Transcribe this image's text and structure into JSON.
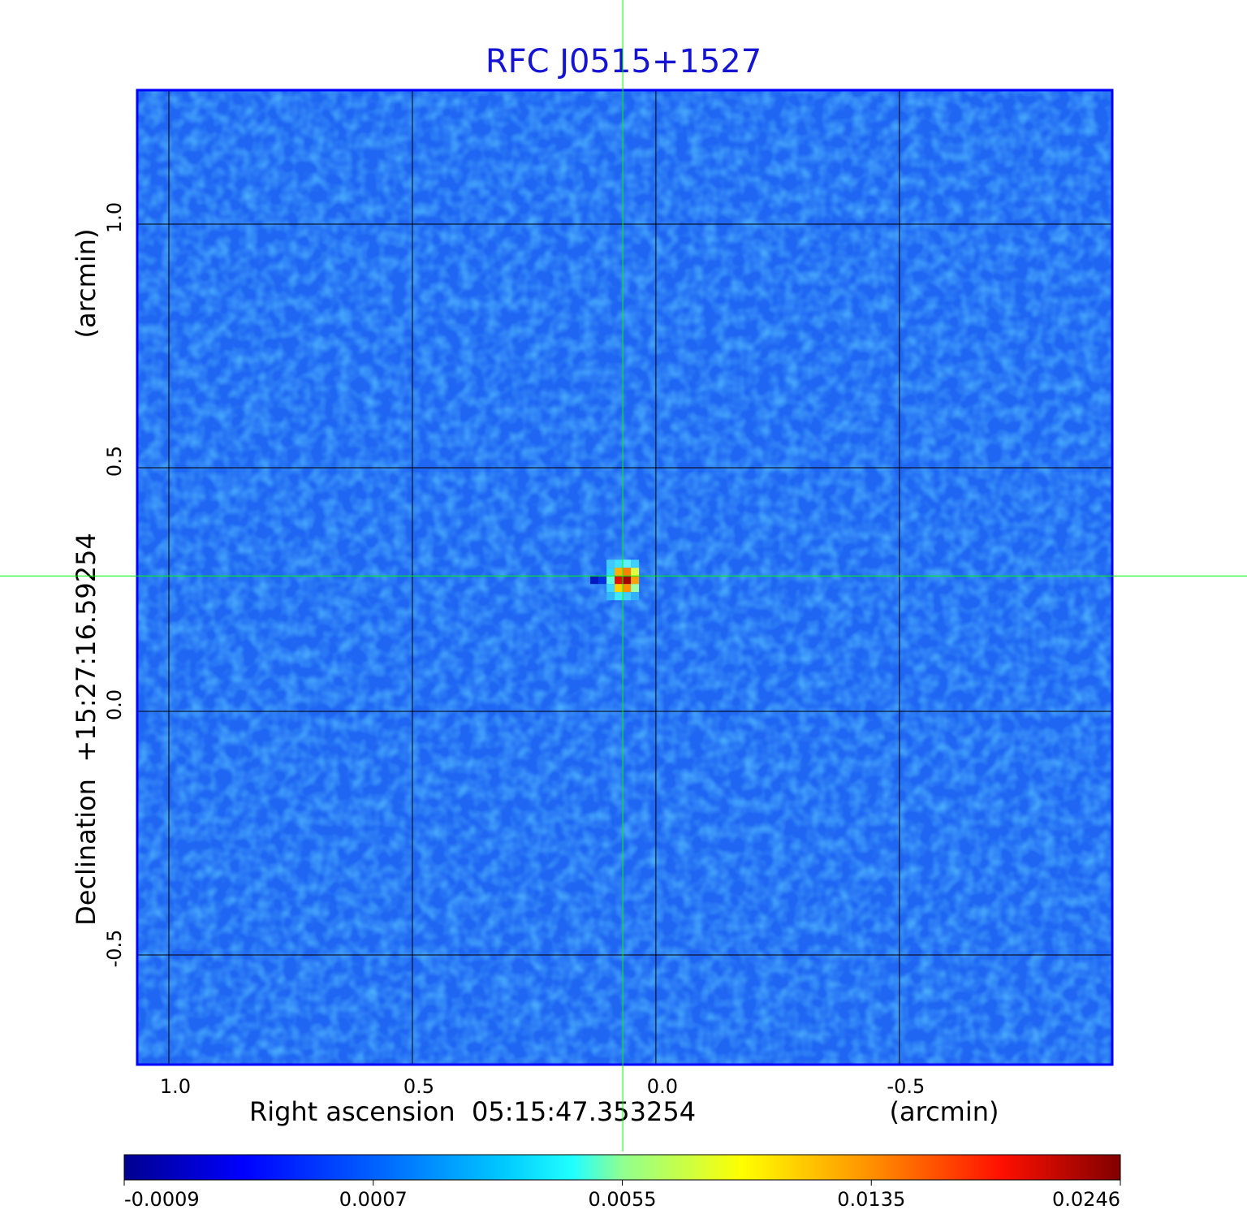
{
  "chart_data": {
    "type": "image",
    "title": "RFC J0515+1527",
    "x_label": "Right ascension  05:15:47.353254",
    "x_unit": "(arcmin)",
    "y_label": "Declination  +15:27:16.59254",
    "y_unit": "(arcmin)",
    "xlim": [
      1.065,
      -0.937
    ],
    "ylim": [
      -0.725,
      1.275
    ],
    "xticks": [
      {
        "value": 1,
        "label": "1.0"
      },
      0.5,
      {
        "value": 0,
        "label": "0.0"
      },
      -0.5
    ],
    "yticks": [
      {
        "value": 1,
        "label": "1.0"
      },
      0.5,
      {
        "value": 0,
        "label": "0.0"
      },
      -0.5
    ],
    "grid": true,
    "marker": {
      "x": 0.068,
      "y": 0.278,
      "color": "#00ff00"
    },
    "colormap": "jet",
    "colorbar_lim": [
      -0.0009,
      0.0246
    ],
    "colorbar_ticks": [
      -0.0009,
      0.0007,
      0.0055,
      0.0135,
      0.0246
    ]
  }
}
